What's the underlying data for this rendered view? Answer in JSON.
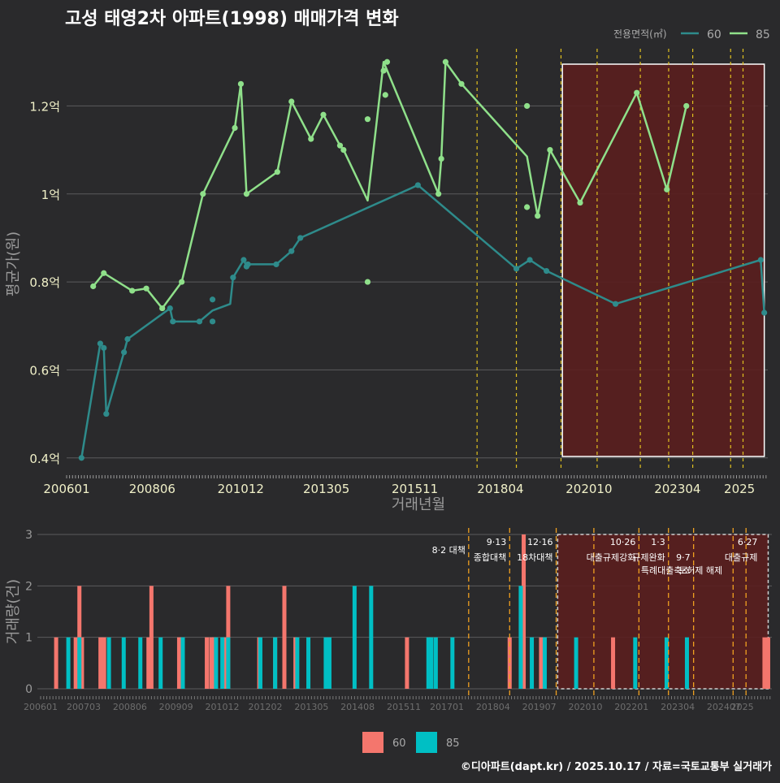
{
  "colors": {
    "bg": "#2a2a2c",
    "grid": "#5a5a5c",
    "line60": "#2e8b8b",
    "line85": "#8fe08a",
    "policy": "#e0c020",
    "policy_lower": "#f0a020",
    "highlight_fill": "#5a1e1e",
    "bar60": "#f4766d",
    "bar85": "#00bfc4",
    "axis_text": "#cfcfcf",
    "y_text": "#f0f0c8"
  },
  "title": "고성 태영2차 아파트(1998) 매매가격 변화",
  "footer": "©디아파트(dapt.kr) / 2025.10.17 / 자료=국토교통부 실거래가",
  "chart_data": [
    {
      "type": "line",
      "title": "고성 태영2차 아파트(1998) 매매가격 변화",
      "xlabel": "거래년월",
      "ylabel": "평균가(원)",
      "legend_title": "전용면적(㎡)",
      "legend": [
        "60",
        "85"
      ],
      "legend_position": "top-right",
      "x_tick_labels": [
        "200601",
        "200806",
        "201012",
        "201305",
        "201511",
        "201804",
        "202010",
        "202304",
        "2025"
      ],
      "x_range": [
        2006.0,
        2025.8
      ],
      "y_tick_labels": [
        "0.4억",
        "0.6억",
        "0.8억",
        "1억",
        "1.2억"
      ],
      "y_ticks": [
        0.4,
        0.6,
        0.8,
        1.0,
        1.2
      ],
      "ylim": [
        0.37,
        1.33
      ],
      "policy_dates": [
        2017.59,
        2018.7,
        2019.96,
        2020.98,
        2022.2,
        2023.0,
        2023.68,
        2024.75,
        2025.1
      ],
      "highlight_range": [
        2020.0,
        2025.7
      ],
      "series": [
        {
          "name": "60",
          "line": [
            [
              2006.42,
              0.4
            ],
            [
              2006.95,
              0.66
            ],
            [
              2007.05,
              0.65
            ],
            [
              2007.12,
              0.5
            ],
            [
              2007.62,
              0.64
            ],
            [
              2007.72,
              0.67
            ],
            [
              2008.92,
              0.74
            ],
            [
              2009.0,
              0.71
            ],
            [
              2009.75,
              0.71
            ],
            [
              2010.12,
              0.735
            ],
            [
              2010.62,
              0.75
            ],
            [
              2010.7,
              0.81
            ],
            [
              2011.0,
              0.85
            ],
            [
              2011.08,
              0.835
            ],
            [
              2011.12,
              0.84
            ],
            [
              2011.92,
              0.84
            ],
            [
              2012.35,
              0.87
            ],
            [
              2012.6,
              0.9
            ],
            [
              2015.92,
              1.02
            ],
            [
              2018.7,
              0.83
            ],
            [
              2019.08,
              0.85
            ],
            [
              2019.55,
              0.825
            ],
            [
              2021.5,
              0.75
            ],
            [
              2025.6,
              0.85
            ],
            [
              2025.7,
              0.73
            ]
          ],
          "points": [
            [
              2006.42,
              0.4
            ],
            [
              2006.95,
              0.66
            ],
            [
              2007.05,
              0.65
            ],
            [
              2007.12,
              0.5
            ],
            [
              2007.62,
              0.64
            ],
            [
              2007.72,
              0.67
            ],
            [
              2008.92,
              0.74
            ],
            [
              2009.0,
              0.71
            ],
            [
              2009.75,
              0.71
            ],
            [
              2010.12,
              0.76
            ],
            [
              2010.12,
              0.71
            ],
            [
              2010.7,
              0.81
            ],
            [
              2011.0,
              0.85
            ],
            [
              2011.08,
              0.835
            ],
            [
              2011.12,
              0.84
            ],
            [
              2011.92,
              0.84
            ],
            [
              2012.35,
              0.87
            ],
            [
              2012.6,
              0.9
            ],
            [
              2015.92,
              1.02
            ],
            [
              2018.7,
              0.83
            ],
            [
              2019.08,
              0.85
            ],
            [
              2019.55,
              0.825
            ],
            [
              2021.5,
              0.75
            ],
            [
              2025.6,
              0.85
            ],
            [
              2025.7,
              0.73
            ]
          ]
        },
        {
          "name": "85",
          "line": [
            [
              2006.75,
              0.79
            ],
            [
              2007.05,
              0.82
            ],
            [
              2007.85,
              0.78
            ],
            [
              2008.25,
              0.785
            ],
            [
              2008.7,
              0.74
            ],
            [
              2009.25,
              0.8
            ],
            [
              2009.85,
              1.0
            ],
            [
              2010.75,
              1.15
            ],
            [
              2010.92,
              1.25
            ],
            [
              2011.08,
              1.0
            ],
            [
              2011.95,
              1.05
            ],
            [
              2012.35,
              1.21
            ],
            [
              2012.9,
              1.125
            ],
            [
              2013.25,
              1.18
            ],
            [
              2013.72,
              1.11
            ],
            [
              2013.82,
              1.1
            ],
            [
              2014.5,
              0.985
            ],
            [
              2014.95,
              1.3
            ],
            [
              2016.5,
              1.0
            ],
            [
              2016.58,
              1.08
            ],
            [
              2016.7,
              1.3
            ],
            [
              2017.15,
              1.25
            ],
            [
              2019.0,
              1.085
            ],
            [
              2019.3,
              0.95
            ],
            [
              2019.65,
              1.1
            ],
            [
              2020.5,
              0.98
            ],
            [
              2022.1,
              1.23
            ],
            [
              2022.95,
              1.01
            ],
            [
              2023.5,
              1.2
            ]
          ],
          "points": [
            [
              2006.75,
              0.79
            ],
            [
              2007.05,
              0.82
            ],
            [
              2007.85,
              0.78
            ],
            [
              2008.25,
              0.785
            ],
            [
              2008.7,
              0.74
            ],
            [
              2009.25,
              0.8
            ],
            [
              2009.85,
              1.0
            ],
            [
              2010.75,
              1.15
            ],
            [
              2010.92,
              1.25
            ],
            [
              2011.08,
              1.0
            ],
            [
              2011.95,
              1.05
            ],
            [
              2012.35,
              1.21
            ],
            [
              2012.9,
              1.125
            ],
            [
              2013.25,
              1.18
            ],
            [
              2013.72,
              1.11
            ],
            [
              2013.82,
              1.1
            ],
            [
              2014.5,
              1.17
            ],
            [
              2014.5,
              0.8
            ],
            [
              2014.95,
              1.28
            ],
            [
              2015.0,
              1.225
            ],
            [
              2015.05,
              1.3
            ],
            [
              2016.5,
              1.0
            ],
            [
              2016.58,
              1.08
            ],
            [
              2016.7,
              1.3
            ],
            [
              2017.15,
              1.25
            ],
            [
              2019.0,
              1.2
            ],
            [
              2019.0,
              0.97
            ],
            [
              2019.3,
              0.95
            ],
            [
              2019.65,
              1.1
            ],
            [
              2020.5,
              0.98
            ],
            [
              2022.1,
              1.23
            ],
            [
              2022.95,
              1.01
            ],
            [
              2023.5,
              1.2
            ]
          ]
        }
      ]
    },
    {
      "type": "bar",
      "ylabel": "거래량(건)",
      "legend": [
        "60",
        "85"
      ],
      "legend_position": "bottom",
      "x_tick_labels": [
        "200601",
        "200703",
        "200806",
        "200909",
        "201012",
        "201202",
        "201305",
        "201408",
        "201511",
        "201701",
        "201804",
        "201907",
        "202010",
        "202201",
        "202304",
        "202407",
        "2025"
      ],
      "x_range": [
        2006.0,
        2025.8
      ],
      "y_tick_labels": [
        "0",
        "1",
        "2",
        "3"
      ],
      "ylim": [
        0,
        3
      ],
      "highlight_range": [
        2020.0,
        2025.7
      ],
      "policy_lines": [
        2017.59,
        2018.7,
        2019.96,
        2020.98,
        2022.2,
        2023.0,
        2023.68,
        2024.75,
        2025.1
      ],
      "policy_annotations": [
        {
          "date": 2017.59,
          "line1": "",
          "line2": "8·2 대책"
        },
        {
          "date": 2018.7,
          "line1": "9·13",
          "line2": "종합대책"
        },
        {
          "date": 2019.96,
          "line1": "12·16",
          "line2": "18차대책"
        },
        {
          "date": 2022.2,
          "line1": "10·26",
          "line2": "대출규제강화"
        },
        {
          "date": 2023.0,
          "line1": "1·3",
          "line2": "규제완화"
        },
        {
          "date": 2023.68,
          "line1": "",
          "line2": "9·7"
        },
        {
          "date": 2023.68,
          "line1": "",
          "line2": "특례대출축소"
        },
        {
          "date": 2024.55,
          "line1": "",
          "line2": "토허제 해제"
        },
        {
          "date": 2025.5,
          "line1": "6·27",
          "line2": "대출규제"
        }
      ],
      "series": [
        {
          "name": "60",
          "points": [
            [
              2006.42,
              1
            ],
            [
              2006.95,
              1
            ],
            [
              2007.05,
              2
            ],
            [
              2007.12,
              1
            ],
            [
              2007.62,
              1
            ],
            [
              2007.72,
              1
            ],
            [
              2008.92,
              1
            ],
            [
              2009.0,
              2
            ],
            [
              2009.75,
              1
            ],
            [
              2010.5,
              1
            ],
            [
              2010.62,
              1
            ],
            [
              2010.7,
              1
            ],
            [
              2011.0,
              1
            ],
            [
              2011.08,
              2
            ],
            [
              2011.92,
              1
            ],
            [
              2012.35,
              1
            ],
            [
              2012.6,
              2
            ],
            [
              2012.9,
              1
            ],
            [
              2015.92,
              1
            ],
            [
              2018.7,
              1
            ],
            [
              2019.08,
              3
            ],
            [
              2019.55,
              1
            ],
            [
              2021.5,
              1
            ],
            [
              2025.6,
              1
            ],
            [
              2025.7,
              1
            ]
          ]
        },
        {
          "name": "85",
          "points": [
            [
              2006.75,
              1
            ],
            [
              2007.05,
              1
            ],
            [
              2007.85,
              1
            ],
            [
              2008.25,
              1
            ],
            [
              2008.7,
              1
            ],
            [
              2009.25,
              1
            ],
            [
              2009.85,
              1
            ],
            [
              2010.75,
              1
            ],
            [
              2010.92,
              1
            ],
            [
              2011.08,
              1
            ],
            [
              2011.95,
              1
            ],
            [
              2012.35,
              1
            ],
            [
              2012.95,
              1
            ],
            [
              2013.25,
              1
            ],
            [
              2013.72,
              1
            ],
            [
              2013.82,
              1
            ],
            [
              2014.5,
              2
            ],
            [
              2014.95,
              2
            ],
            [
              2016.5,
              1
            ],
            [
              2016.58,
              1
            ],
            [
              2016.7,
              1
            ],
            [
              2017.15,
              1
            ],
            [
              2019.0,
              2
            ],
            [
              2019.3,
              1
            ],
            [
              2019.65,
              1
            ],
            [
              2020.5,
              1
            ],
            [
              2022.1,
              1
            ],
            [
              2022.95,
              1
            ],
            [
              2023.5,
              1
            ]
          ]
        }
      ]
    }
  ]
}
